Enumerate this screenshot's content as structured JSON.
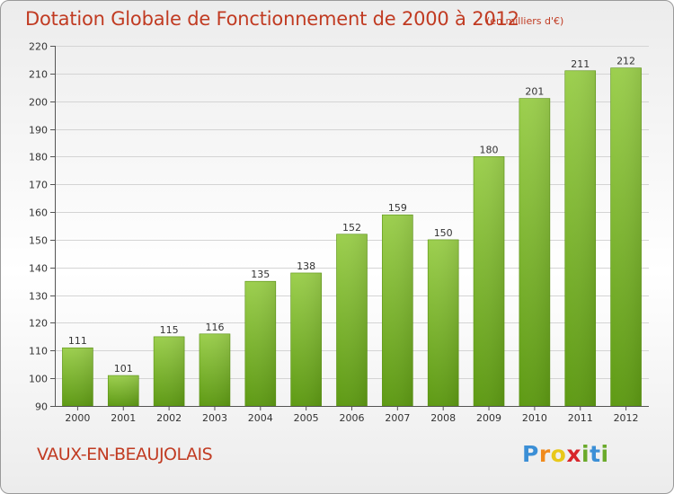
{
  "chart_data": {
    "type": "bar",
    "title": "Dotation Globale de Fonctionnement de 2000 à 2012",
    "unit_note": "(en milliers d'€)",
    "categories": [
      "2000",
      "2001",
      "2002",
      "2003",
      "2004",
      "2005",
      "2006",
      "2007",
      "2008",
      "2009",
      "2010",
      "2011",
      "2012"
    ],
    "values": [
      111,
      101,
      115,
      116,
      135,
      138,
      152,
      159,
      150,
      180,
      201,
      211,
      212
    ],
    "ylim": [
      90,
      220
    ],
    "yticks": [
      90,
      100,
      110,
      120,
      130,
      140,
      150,
      160,
      170,
      180,
      190,
      200,
      210,
      220
    ],
    "grid": true,
    "bar_color": "#7ab82e",
    "title_color": "#c13b22"
  },
  "commune": "VAUX-EN-BEAUJOLAIS",
  "brand": {
    "letters": [
      "P",
      "r",
      "o",
      "x",
      "i",
      "t",
      "i"
    ],
    "colors": [
      "#3b8fd6",
      "#f08a1c",
      "#e8c81a",
      "#d8262b",
      "#6aaa2a",
      "#3b8fd6",
      "#6aaa2a"
    ]
  }
}
